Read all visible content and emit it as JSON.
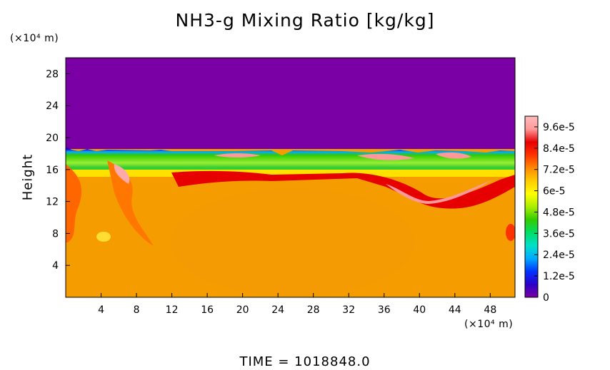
{
  "chart_data": {
    "type": "heatmap",
    "title": "NH3-g Mixing Ratio [kg/kg]",
    "ylabel": "Height",
    "y_unit": "(×10⁴ m)",
    "x_unit": "(×10⁴ m)",
    "xlabel": "",
    "x_ticks": [
      "4",
      "8",
      "12",
      "16",
      "20",
      "24",
      "28",
      "32",
      "36",
      "40",
      "44",
      "48"
    ],
    "y_ticks": [
      "4",
      "8",
      "12",
      "16",
      "20",
      "24",
      "28"
    ],
    "xlim": [
      0,
      50.8
    ],
    "ylim": [
      0,
      30
    ],
    "colorbar": {
      "ticks": [
        "9.6e-5",
        "8.4e-5",
        "7.2e-5",
        "6e-5",
        "4.8e-5",
        "3.6e-5",
        "2.4e-5",
        "1.2e-5",
        "0"
      ],
      "min": 0,
      "max": 0.000102,
      "colors": [
        "#7a00a6",
        "#2b00c8",
        "#0033ff",
        "#00aaff",
        "#00e0c8",
        "#00dd66",
        "#33cc00",
        "#aaee00",
        "#ffff00",
        "#ffcc00",
        "#ff8800",
        "#ff3300",
        "#e60000",
        "#ff9999",
        "#ffbbbb"
      ]
    },
    "regions": [
      {
        "name": "upper",
        "y_range": [
          19,
          30
        ],
        "value": 0
      },
      {
        "name": "transition-band",
        "y_range": [
          15.5,
          19
        ],
        "value_range": [
          4e-05,
          9.8e-05
        ]
      },
      {
        "name": "lower",
        "y_range": [
          0,
          15.5
        ],
        "value_range": [
          7.5e-05,
          9.8e-05
        ]
      }
    ]
  },
  "footer": {
    "text": "TIME  =  1018848.0"
  }
}
